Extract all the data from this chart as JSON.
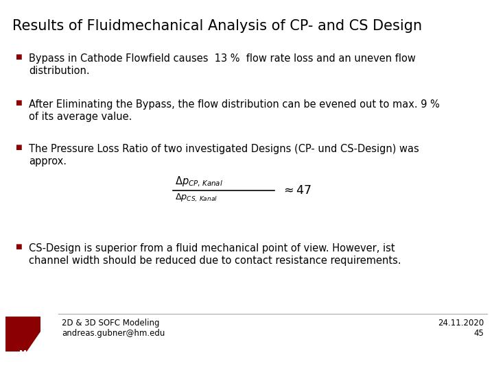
{
  "title": "Results of Fluidmechanical Analysis of CP- and CS Design",
  "bullet_color": "#8B0000",
  "text_color": "#000000",
  "bg_color": "#ffffff",
  "title_fontsize": 15,
  "body_fontsize": 10.5,
  "footer_fontsize": 8.5,
  "bullet1_line1": "Bypass in Cathode Flowfield causes  13 %  flow rate loss and an uneven flow",
  "bullet1_line2": "distribution.",
  "bullet2_line1": "After Eliminating the Bypass, the flow distribution can be evened out to max. 9 %",
  "bullet2_line2": "of its average value.",
  "bullet3_line1": "The Pressure Loss Ratio of two investigated Designs (CP- und CS-Design) was",
  "bullet3_line2": "approx.",
  "bullet4_line1": "CS-Design is superior from a fluid mechanical point of view. However, ist",
  "bullet4_line2": "channel width should be reduced due to contact resistance requirements.",
  "footer_left1": "2D & 3D SOFC Modeling",
  "footer_left2": "andreas.gubner@hm.edu",
  "footer_right1": "24.11.2020",
  "footer_right2": "45",
  "logo_color": "#8B0000",
  "footer_line_color": "#aaaaaa"
}
